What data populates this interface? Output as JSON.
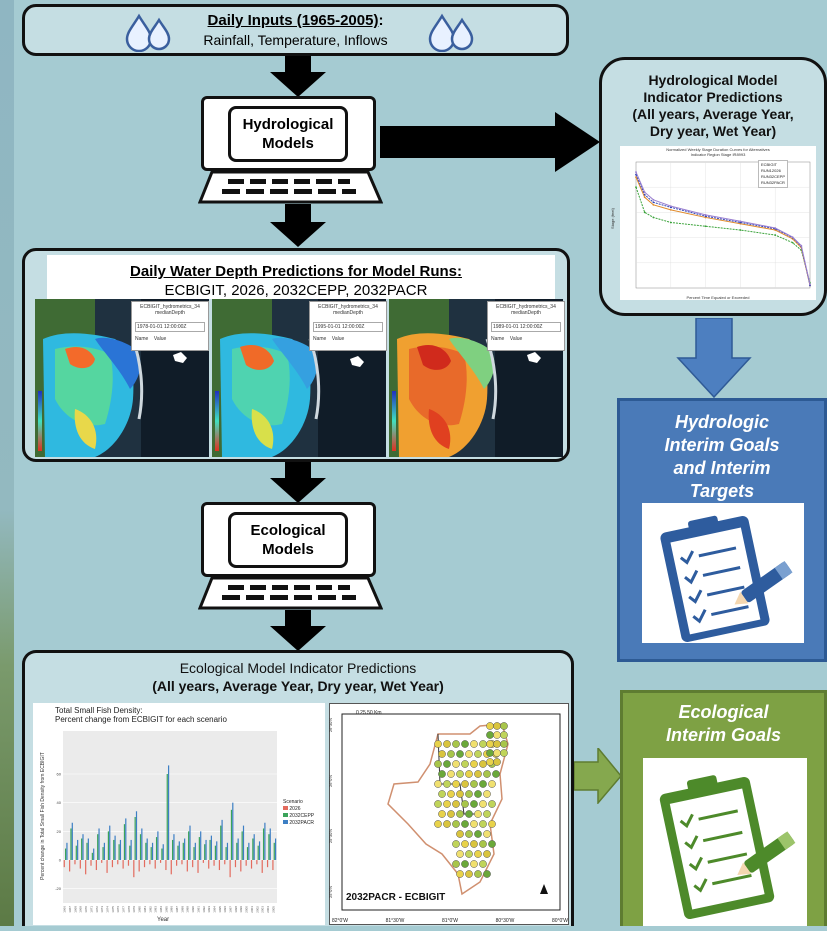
{
  "inputs": {
    "title": "Daily Inputs (1965-2005)",
    "colon": ":",
    "subtitle": "Rainfall, Temperature, Inflows"
  },
  "hydro_model": {
    "label_line1": "Hydrological",
    "label_line2": "Models"
  },
  "hydro_indicator": {
    "line1": "Hydrological Model",
    "line2": "Indicator Predictions",
    "line3": "(All years, Average Year,",
    "line4": "Dry year, Wet Year)",
    "chart_title": "Normalized Weekly Stage Duration Curves for Alternatives",
    "chart_subtitle": "Indicator Region Stage IR8993",
    "chart_xlabel": "Percent Time Equaled or Exceeded",
    "chart_ylabel": "Stage (feet)",
    "legend": [
      "ECBIGIT",
      "RUN12026",
      "RUN32CEPP",
      "RUN32PACR"
    ]
  },
  "water_depth": {
    "title": "Daily Water Depth Predictions for Model Runs:",
    "subtitle": "ECBIGIT, 2026, 2032CEPP, 2032PACR",
    "panels": [
      {
        "layer": "ECBIGIT_hydrometrics_34",
        "field": "medianDepth",
        "date": "1978-01-01 12:00:00Z"
      },
      {
        "layer": "ECBIGIT_hydrometrics_34",
        "field": "medianDepth",
        "date": "1995-01-01 12:00:00Z"
      },
      {
        "layer": "ECBIGIT_hydrometrics_34",
        "field": "medianDepth",
        "date": "1989-01-01 12:00:00Z"
      }
    ],
    "col_name": "Name",
    "col_value": "Value"
  },
  "eco_model": {
    "label_line1": "Ecological",
    "label_line2": "Models"
  },
  "eco_indicator": {
    "line1": "Ecological Model Indicator Predictions",
    "line2": "(All years, Average Year, Dry year, Wet Year)",
    "bar_title1": "Total Small Fish Density:",
    "bar_title2": "Percent change from ECBIGIT for each scenario",
    "bar_ylabel": "Percent change in Total Small Fish Density from ECBIGIT",
    "bar_xlabel": "Year",
    "legend_title": "Scenario",
    "legend": [
      "2026",
      "2032CEPP",
      "2032PACR"
    ],
    "map_scale": "0   25   50 Km",
    "map_label": "2032PACR - ECBIGIT",
    "lon_ticks": [
      "82°0'W",
      "81°30'W",
      "81°0'W",
      "80°30'W",
      "80°0'W"
    ],
    "lat_ticks": [
      "26°30'N",
      "26°0'N",
      "25°30'N",
      "25°0'N"
    ]
  },
  "hydro_goals": {
    "line1": "Hydrologic",
    "line2": "Interim Goals",
    "line3": "and Interim",
    "line4": "Targets"
  },
  "eco_goals": {
    "line1": "Ecological",
    "line2": "Interim Goals"
  },
  "colors": {
    "background": "#a5cbd2",
    "box_fill": "#c5dee3",
    "hydro_goal": "#4a7ab8",
    "eco_goal": "#7ea144",
    "blue_arrow": "#4d7fc0",
    "green_arrow": "#85a84e"
  },
  "chart_data": [
    {
      "type": "line",
      "title": "Normalized Weekly Stage Duration Curves for Alternatives",
      "subtitle": "Indicator Region Stage IR8993",
      "xlabel": "Percent Time Equaled or Exceeded",
      "ylabel": "Stage (feet)",
      "xlim": [
        0,
        100
      ],
      "series": [
        {
          "name": "ECBIGIT",
          "x": [
            0,
            5,
            10,
            20,
            40,
            60,
            80,
            90,
            95,
            100
          ],
          "values": [
            3.0,
            2.0,
            1.8,
            1.6,
            1.45,
            1.3,
            1.1,
            0.8,
            0.5,
            -0.8
          ]
        },
        {
          "name": "RUN12026",
          "x": [
            0,
            5,
            10,
            20,
            40,
            60,
            80,
            90,
            95,
            100
          ],
          "values": [
            3.4,
            2.6,
            2.3,
            2.1,
            1.8,
            1.55,
            1.3,
            0.95,
            0.6,
            -0.9
          ]
        },
        {
          "name": "RUN32CEPP",
          "x": [
            0,
            5,
            10,
            20,
            40,
            60,
            80,
            90,
            95,
            100
          ],
          "values": [
            3.5,
            2.7,
            2.4,
            2.2,
            1.85,
            1.6,
            1.35,
            1.0,
            0.65,
            -0.9
          ]
        },
        {
          "name": "RUN32PACR",
          "x": [
            0,
            5,
            10,
            20,
            40,
            60,
            80,
            90,
            95,
            100
          ],
          "values": [
            3.6,
            2.8,
            2.5,
            2.25,
            1.9,
            1.65,
            1.38,
            1.02,
            0.68,
            -0.85
          ]
        }
      ]
    },
    {
      "type": "bar",
      "title": "Total Small Fish Density:",
      "subtitle": "Percent change from ECBIGIT for each scenario",
      "xlabel": "Year",
      "ylabel": "Percent change in Total Small Fish Density from ECBIGIT",
      "ylim": [
        -30,
        90
      ],
      "yticks": [
        -20,
        0,
        20,
        40,
        60
      ],
      "categories": [
        "1966",
        "1967",
        "1968",
        "1969",
        "1970",
        "1971",
        "1972",
        "1973",
        "1974",
        "1975",
        "1976",
        "1977",
        "1978",
        "1979",
        "1980",
        "1981",
        "1982",
        "1983",
        "1984",
        "1985",
        "1986",
        "1987",
        "1988",
        "1989",
        "1990",
        "1991",
        "1992",
        "1993",
        "1994",
        "1995",
        "1996",
        "1997",
        "1998",
        "1999",
        "2000",
        "2001",
        "2002",
        "2003",
        "2004",
        "2005"
      ],
      "series": [
        {
          "name": "2026",
          "values": [
            -5,
            -8,
            -3,
            -6,
            -10,
            -4,
            -7,
            -2,
            -9,
            -5,
            -3,
            -6,
            -4,
            -12,
            -8,
            -5,
            -3,
            -6,
            -2,
            -7,
            -10,
            -4,
            -3,
            -8,
            -5,
            -9,
            -2,
            -6,
            -4,
            -7,
            -3,
            -12,
            -5,
            -8,
            -4,
            -6,
            -3,
            -9,
            -5,
            -7
          ]
        },
        {
          "name": "2032CEPP",
          "values": [
            8,
            22,
            10,
            15,
            12,
            5,
            18,
            9,
            20,
            14,
            11,
            25,
            10,
            30,
            18,
            12,
            9,
            16,
            8,
            60,
            14,
            10,
            12,
            20,
            9,
            16,
            11,
            14,
            10,
            24,
            9,
            35,
            12,
            20,
            9,
            15,
            10,
            22,
            18,
            12
          ]
        },
        {
          "name": "2032PACR",
          "values": [
            12,
            26,
            14,
            18,
            15,
            8,
            22,
            12,
            24,
            17,
            14,
            29,
            14,
            34,
            22,
            15,
            12,
            20,
            11,
            66,
            18,
            13,
            15,
            24,
            12,
            20,
            14,
            17,
            13,
            28,
            12,
            40,
            15,
            24,
            12,
            18,
            13,
            26,
            22,
            15
          ]
        }
      ]
    }
  ]
}
